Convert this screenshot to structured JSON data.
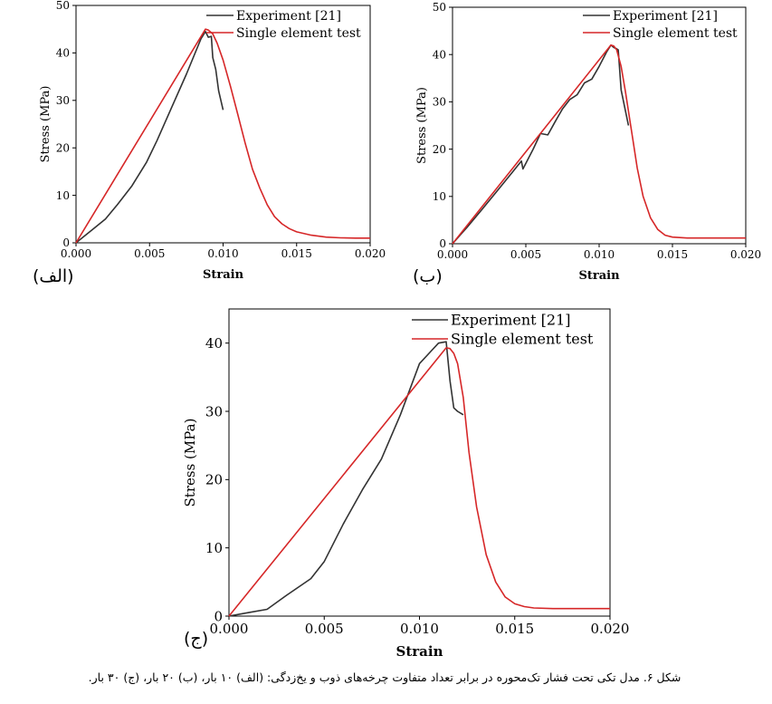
{
  "caption": "شکل ۶. مدل تکی تحت فشار تک‌محوره در برابر تعداد متفاوت چرخه‌های ذوب و یخ‌زدگی: (الف) ۱۰ بار، (ب) ۲۰ بار، (ج) ۳۰ بار.",
  "colors": {
    "experiment": "#333333",
    "single": "#d62728"
  },
  "chart_data": [
    {
      "panel_label": "(الف)",
      "type": "line",
      "xlabel": "Strain",
      "ylabel": "Stress (MPa)",
      "xlim": [
        0,
        0.02
      ],
      "ylim": [
        0,
        50
      ],
      "xticks": [
        "0.000",
        "0.005",
        "0.010",
        "0.015",
        "0.020"
      ],
      "yticks": [
        "0",
        "10",
        "20",
        "30",
        "40",
        "50"
      ],
      "legend": "top-right",
      "series": [
        {
          "name": "Experiment [21]",
          "color": "#333333",
          "x": [
            0,
            0.001,
            0.002,
            0.0028,
            0.0038,
            0.0048,
            0.0055,
            0.0065,
            0.0075,
            0.0085,
            0.0088,
            0.009,
            0.0092,
            0.0093,
            0.0095,
            0.0097,
            0.01
          ],
          "y": [
            0,
            2.5,
            5,
            8,
            12,
            17,
            21.5,
            28.5,
            35.5,
            43,
            44.5,
            43.3,
            43.5,
            39,
            36.5,
            32,
            28
          ]
        },
        {
          "name": "Single element test",
          "color": "#d62728",
          "x": [
            0,
            0.0088,
            0.009,
            0.0093,
            0.0096,
            0.01,
            0.0105,
            0.011,
            0.0115,
            0.012,
            0.0125,
            0.013,
            0.0135,
            0.014,
            0.0145,
            0.015,
            0.016,
            0.017,
            0.018,
            0.019,
            0.02
          ],
          "y": [
            0,
            45,
            44.8,
            44,
            42,
            38.5,
            33,
            27,
            21,
            15.5,
            11.5,
            8,
            5.5,
            4,
            3,
            2.3,
            1.6,
            1.2,
            1.05,
            1,
            1
          ]
        }
      ]
    },
    {
      "panel_label": "(ب)",
      "type": "line",
      "xlabel": "Strain",
      "ylabel": "Stress (MPa)",
      "xlim": [
        0,
        0.02
      ],
      "ylim": [
        0,
        50
      ],
      "xticks": [
        "0.000",
        "0.005",
        "0.010",
        "0.015",
        "0.020"
      ],
      "yticks": [
        "0",
        "10",
        "20",
        "30",
        "40",
        "50"
      ],
      "legend": "top-right",
      "series": [
        {
          "name": "Experiment [21]",
          "color": "#333333",
          "x": [
            0,
            0.001,
            0.002,
            0.003,
            0.004,
            0.0047,
            0.0048,
            0.0055,
            0.006,
            0.0065,
            0.007,
            0.0075,
            0.008,
            0.0085,
            0.009,
            0.0095,
            0.01,
            0.0105,
            0.0108,
            0.011,
            0.0112,
            0.0113,
            0.0115,
            0.012
          ],
          "y": [
            0,
            3.5,
            7.2,
            11,
            14.8,
            17.5,
            15.8,
            20,
            23.3,
            23,
            25.8,
            28.5,
            30.5,
            31.5,
            34,
            34.8,
            37.5,
            40.5,
            42,
            41.5,
            41.2,
            41,
            32.5,
            25
          ]
        },
        {
          "name": "Single element test",
          "color": "#d62728",
          "x": [
            0,
            0.0108,
            0.011,
            0.0112,
            0.0115,
            0.0118,
            0.012,
            0.0123,
            0.0126,
            0.013,
            0.0135,
            0.014,
            0.0145,
            0.015,
            0.016,
            0.018,
            0.02
          ],
          "y": [
            0,
            42,
            41.8,
            41,
            37.5,
            32,
            28,
            22,
            16,
            10,
            5.5,
            3,
            1.8,
            1.4,
            1.2,
            1.2,
            1.2
          ]
        }
      ]
    },
    {
      "panel_label": "(ج)",
      "type": "line",
      "xlabel": "Strain",
      "ylabel": "Stress (MPa)",
      "xlim": [
        0,
        0.02
      ],
      "ylim": [
        0,
        45
      ],
      "xticks": [
        "0.000",
        "0.005",
        "0.010",
        "0.015",
        "0.020"
      ],
      "yticks": [
        "0",
        "10",
        "20",
        "30",
        "40"
      ],
      "legend": "top-right",
      "series": [
        {
          "name": "Experiment [21]",
          "color": "#333333",
          "x": [
            0,
            0.001,
            0.002,
            0.003,
            0.0043,
            0.005,
            0.006,
            0.007,
            0.008,
            0.009,
            0.01,
            0.0105,
            0.011,
            0.0114,
            0.0116,
            0.0118,
            0.012,
            0.0123
          ],
          "y": [
            0,
            0.5,
            1,
            3,
            5.5,
            8,
            13.5,
            18.5,
            23,
            29.5,
            37,
            38.5,
            40,
            40.2,
            34.5,
            30.5,
            30,
            29.5
          ]
        },
        {
          "name": "Single element test",
          "color": "#d62728",
          "x": [
            0,
            0.0114,
            0.0116,
            0.0118,
            0.012,
            0.0123,
            0.0126,
            0.013,
            0.0135,
            0.014,
            0.0145,
            0.015,
            0.0155,
            0.016,
            0.017,
            0.018,
            0.02
          ],
          "y": [
            0,
            39.3,
            39.2,
            38.5,
            37,
            32,
            24,
            16,
            9,
            5,
            2.8,
            1.8,
            1.4,
            1.2,
            1.1,
            1.1,
            1.1
          ]
        }
      ]
    }
  ]
}
